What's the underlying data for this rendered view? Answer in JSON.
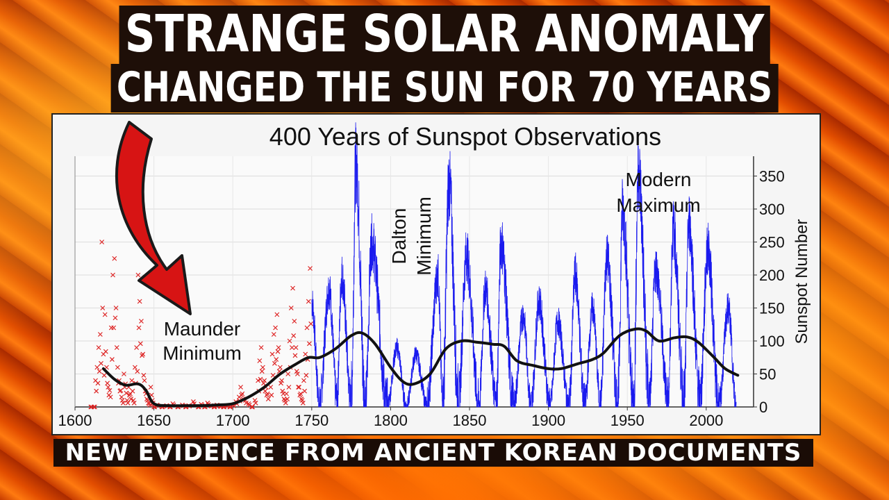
{
  "headline": {
    "line1": "STRANGE SOLAR ANOMALY",
    "line2": "CHANGED THE SUN FOR 70 YEARS",
    "subtitle": "NEW EVIDENCE FROM ANCIENT KOREAN DOCUMENTS"
  },
  "colors": {
    "title_bg": "#1e0f08",
    "observations_red": "#dd2222",
    "monthly_blue": "#1a1aee",
    "smoothed_black": "#111111",
    "arrow_red": "#d71414"
  },
  "chart_data": {
    "type": "line",
    "title": "400 Years of Sunspot Observations",
    "ylabel": "Sunspot Number",
    "xlabel": "",
    "xlim": [
      1600,
      2030
    ],
    "ylim": [
      0,
      380
    ],
    "x_ticks": [
      1600,
      1650,
      1700,
      1750,
      1800,
      1850,
      1900,
      1950,
      2000
    ],
    "y_ticks": [
      0,
      50,
      100,
      150,
      200,
      250,
      300,
      350
    ],
    "y_axis_side": "right",
    "grid": true,
    "series": [
      {
        "role": "early-observations",
        "style": "x-markers",
        "color": "#dd2222",
        "points": [
          [
            1610,
            0
          ],
          [
            1612,
            0
          ],
          [
            1613,
            40
          ],
          [
            1614,
            60
          ],
          [
            1615,
            90
          ],
          [
            1616,
            110
          ],
          [
            1617,
            250
          ],
          [
            1618,
            80
          ],
          [
            1619,
            140
          ],
          [
            1620,
            60
          ],
          [
            1621,
            30
          ],
          [
            1622,
            25
          ],
          [
            1623,
            120
          ],
          [
            1624,
            200
          ],
          [
            1625,
            225
          ],
          [
            1626,
            150
          ],
          [
            1627,
            60
          ],
          [
            1628,
            40
          ],
          [
            1629,
            25
          ],
          [
            1630,
            10
          ],
          [
            1631,
            50
          ],
          [
            1632,
            35
          ],
          [
            1633,
            10
          ],
          [
            1634,
            30
          ],
          [
            1635,
            20
          ],
          [
            1636,
            40
          ],
          [
            1637,
            10
          ],
          [
            1638,
            60
          ],
          [
            1639,
            90
          ],
          [
            1640,
            200
          ],
          [
            1641,
            160
          ],
          [
            1642,
            130
          ],
          [
            1643,
            80
          ],
          [
            1644,
            40
          ],
          [
            1645,
            20
          ],
          [
            1646,
            10
          ],
          [
            1647,
            5
          ],
          [
            1648,
            30
          ],
          [
            1649,
            10
          ],
          [
            1650,
            0
          ],
          [
            1652,
            3
          ],
          [
            1655,
            0
          ],
          [
            1658,
            2
          ],
          [
            1660,
            0
          ],
          [
            1662,
            5
          ],
          [
            1665,
            0
          ],
          [
            1668,
            3
          ],
          [
            1670,
            0
          ],
          [
            1672,
            2
          ],
          [
            1675,
            8
          ],
          [
            1678,
            0
          ],
          [
            1680,
            4
          ],
          [
            1682,
            0
          ],
          [
            1684,
            6
          ],
          [
            1686,
            2
          ],
          [
            1688,
            0
          ],
          [
            1690,
            3
          ],
          [
            1692,
            1
          ],
          [
            1694,
            0
          ],
          [
            1696,
            2
          ],
          [
            1698,
            0
          ],
          [
            1700,
            3
          ],
          [
            1702,
            8
          ],
          [
            1704,
            15
          ],
          [
            1705,
            30
          ],
          [
            1706,
            20
          ],
          [
            1708,
            10
          ],
          [
            1710,
            5
          ],
          [
            1712,
            0
          ],
          [
            1714,
            10
          ],
          [
            1716,
            40
          ],
          [
            1717,
            70
          ],
          [
            1718,
            90
          ],
          [
            1719,
            60
          ],
          [
            1720,
            40
          ],
          [
            1721,
            30
          ],
          [
            1722,
            20
          ],
          [
            1724,
            30
          ],
          [
            1725,
            80
          ],
          [
            1726,
            110
          ],
          [
            1727,
            120
          ],
          [
            1728,
            140
          ],
          [
            1729,
            90
          ],
          [
            1730,
            60
          ],
          [
            1731,
            40
          ],
          [
            1732,
            20
          ],
          [
            1733,
            10
          ],
          [
            1734,
            20
          ],
          [
            1735,
            50
          ],
          [
            1736,
            100
          ],
          [
            1737,
            150
          ],
          [
            1738,
            180
          ],
          [
            1739,
            130
          ],
          [
            1740,
            90
          ],
          [
            1741,
            50
          ],
          [
            1742,
            30
          ],
          [
            1743,
            20
          ],
          [
            1744,
            10
          ],
          [
            1745,
            40
          ],
          [
            1746,
            80
          ],
          [
            1747,
            120
          ],
          [
            1748,
            160
          ],
          [
            1749,
            210
          ]
        ]
      },
      {
        "role": "monthly-sunspot-number",
        "style": "thin-line",
        "color": "#1a1aee",
        "cycle_maxima": [
          [
            1750,
            160
          ],
          [
            1761,
            180
          ],
          [
            1769,
            200
          ],
          [
            1778,
            370
          ],
          [
            1788,
            250
          ],
          [
            1804,
            90
          ],
          [
            1816,
            80
          ],
          [
            1830,
            200
          ],
          [
            1837,
            340
          ],
          [
            1848,
            230
          ],
          [
            1860,
            180
          ],
          [
            1870,
            250
          ],
          [
            1884,
            140
          ],
          [
            1894,
            160
          ],
          [
            1906,
            130
          ],
          [
            1917,
            200
          ],
          [
            1928,
            150
          ],
          [
            1937,
            230
          ],
          [
            1947,
            300
          ],
          [
            1957,
            360
          ],
          [
            1968,
            210
          ],
          [
            1979,
            270
          ],
          [
            1989,
            280
          ],
          [
            2001,
            240
          ],
          [
            2014,
            150
          ]
        ],
        "cycle_minima": [
          [
            1755,
            5
          ],
          [
            1766,
            10
          ],
          [
            1775,
            5
          ],
          [
            1784,
            5
          ],
          [
            1798,
            2
          ],
          [
            1810,
            0
          ],
          [
            1823,
            2
          ],
          [
            1833,
            5
          ],
          [
            1843,
            8
          ],
          [
            1856,
            2
          ],
          [
            1867,
            5
          ],
          [
            1878,
            0
          ],
          [
            1889,
            3
          ],
          [
            1901,
            1
          ],
          [
            1913,
            0
          ],
          [
            1923,
            3
          ],
          [
            1933,
            2
          ],
          [
            1944,
            5
          ],
          [
            1954,
            2
          ],
          [
            1964,
            8
          ],
          [
            1976,
            10
          ],
          [
            1986,
            10
          ],
          [
            1996,
            8
          ],
          [
            2008,
            0
          ],
          [
            2019,
            0
          ]
        ]
      },
      {
        "role": "smoothed-average",
        "style": "thick-line",
        "color": "#111111",
        "points": [
          [
            1618,
            58
          ],
          [
            1625,
            42
          ],
          [
            1632,
            33
          ],
          [
            1640,
            35
          ],
          [
            1645,
            25
          ],
          [
            1650,
            5
          ],
          [
            1660,
            2
          ],
          [
            1670,
            2
          ],
          [
            1680,
            2
          ],
          [
            1690,
            3
          ],
          [
            1700,
            5
          ],
          [
            1710,
            15
          ],
          [
            1720,
            30
          ],
          [
            1730,
            50
          ],
          [
            1740,
            65
          ],
          [
            1748,
            75
          ],
          [
            1755,
            75
          ],
          [
            1765,
            88
          ],
          [
            1775,
            108
          ],
          [
            1782,
            112
          ],
          [
            1790,
            96
          ],
          [
            1800,
            60
          ],
          [
            1808,
            38
          ],
          [
            1815,
            35
          ],
          [
            1825,
            50
          ],
          [
            1835,
            88
          ],
          [
            1845,
            100
          ],
          [
            1855,
            98
          ],
          [
            1865,
            95
          ],
          [
            1872,
            92
          ],
          [
            1880,
            70
          ],
          [
            1890,
            63
          ],
          [
            1900,
            58
          ],
          [
            1908,
            58
          ],
          [
            1918,
            65
          ],
          [
            1928,
            72
          ],
          [
            1935,
            82
          ],
          [
            1945,
            108
          ],
          [
            1955,
            118
          ],
          [
            1962,
            115
          ],
          [
            1970,
            100
          ],
          [
            1980,
            105
          ],
          [
            1988,
            106
          ],
          [
            1995,
            98
          ],
          [
            2005,
            75
          ],
          [
            2012,
            58
          ],
          [
            2020,
            48
          ]
        ]
      }
    ],
    "annotations": [
      {
        "text_lines": [
          "Maunder",
          "Minimum"
        ]
      },
      {
        "text_lines": [
          "Dalton",
          "Minimum"
        ],
        "rotated": true
      },
      {
        "text_lines": [
          "Modern",
          "Maximum"
        ]
      }
    ]
  }
}
